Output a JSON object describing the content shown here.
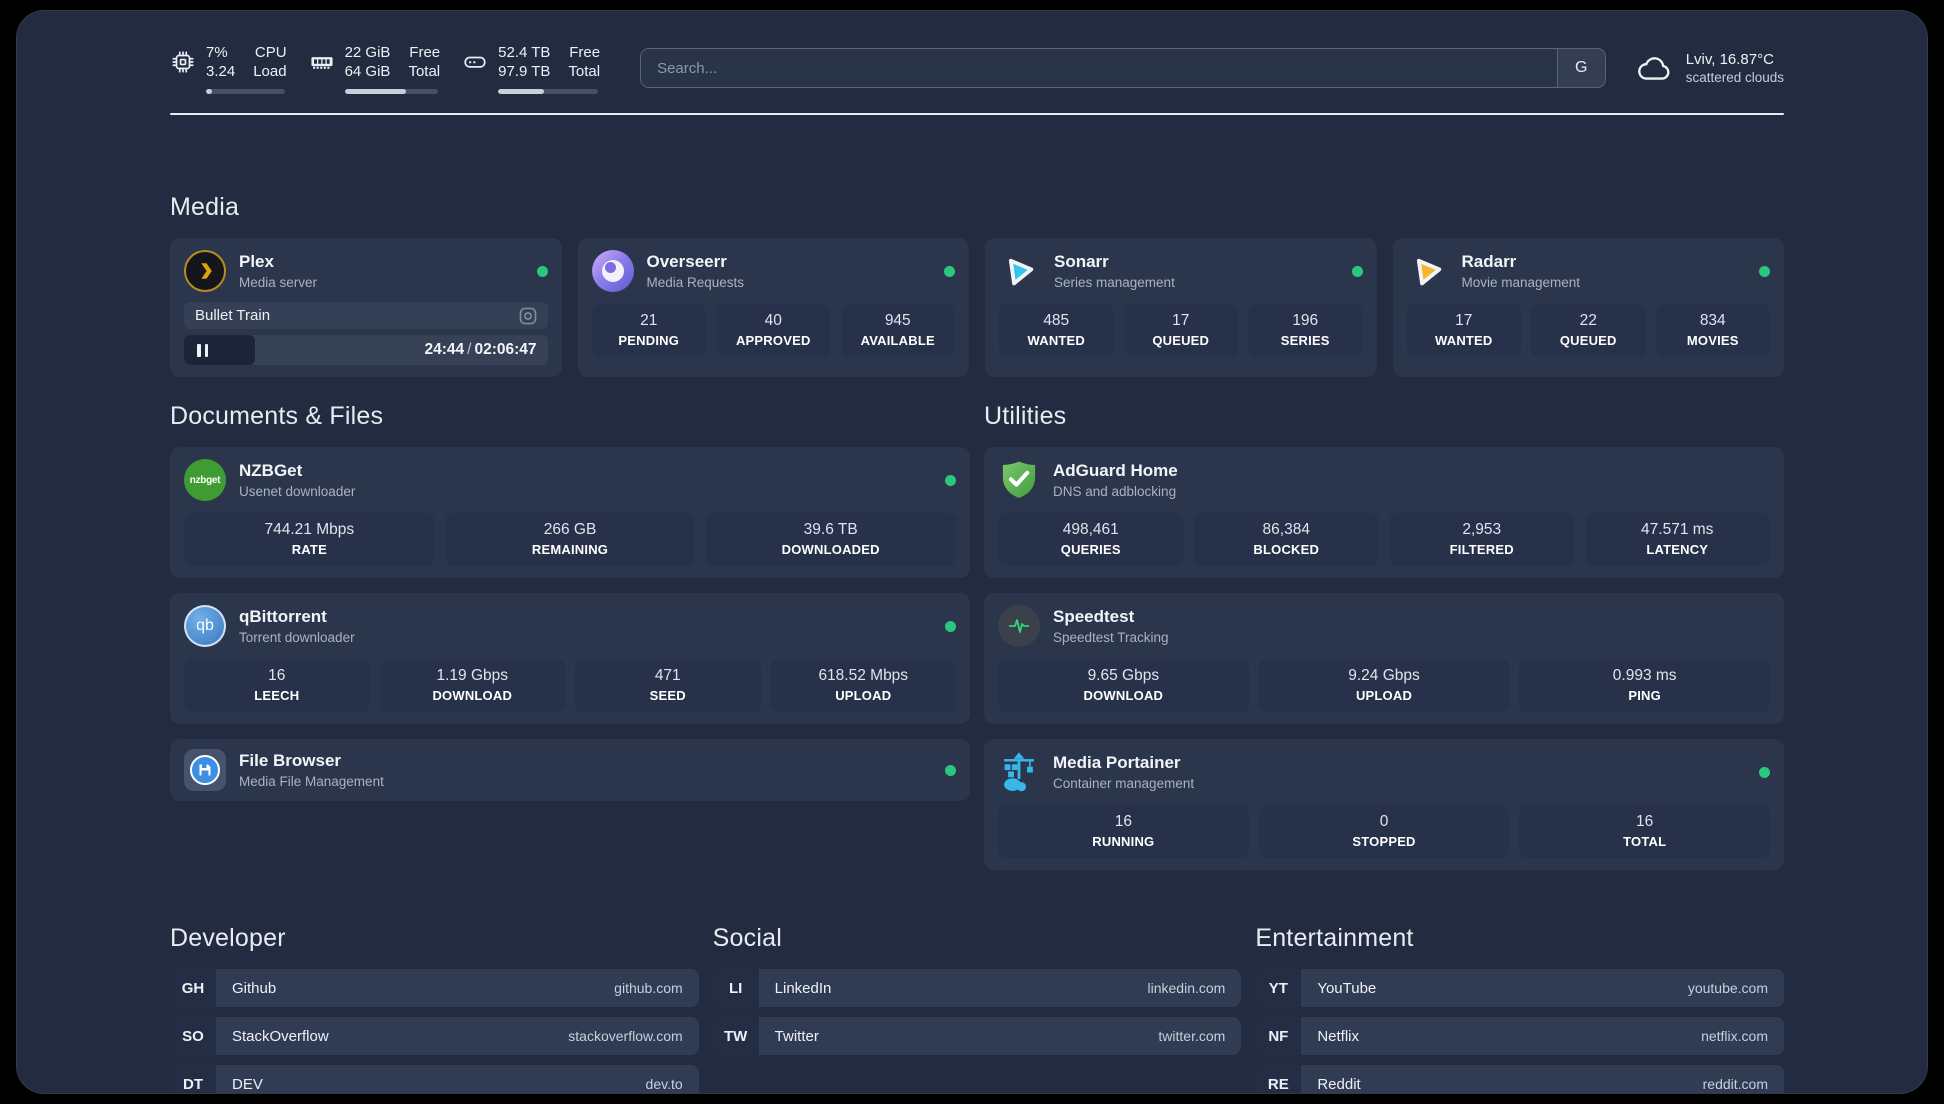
{
  "colors": {
    "accent_green": "#2bc77f",
    "page_bg": "#222b40",
    "card_bg": "#2b364d"
  },
  "header": {
    "stats": [
      {
        "icon": "cpu-icon",
        "value_top": "7%",
        "value_bottom": "3.24",
        "label_top": "CPU",
        "label_bottom": "Load",
        "percent": 7
      },
      {
        "icon": "memory-icon",
        "value_top": "22 GiB",
        "value_bottom": "64 GiB",
        "label_top": "Free",
        "label_bottom": "Total",
        "percent": 66
      },
      {
        "icon": "disk-icon",
        "value_top": "52.4 TB",
        "value_bottom": "97.9 TB",
        "label_top": "Free",
        "label_bottom": "Total",
        "percent": 46
      }
    ],
    "search": {
      "placeholder": "Search...",
      "engine_label": "G"
    },
    "weather": {
      "line1": "Lviv, 16.87°C",
      "line2": "scattered clouds"
    }
  },
  "media": {
    "title": "Media",
    "plex": {
      "title": "Plex",
      "subtitle": "Media server",
      "online": true,
      "now_playing": {
        "track": "Bullet Train",
        "elapsed": "24:44",
        "separator": "/",
        "total": "02:06:47",
        "percent": 19.5
      }
    },
    "overseerr": {
      "title": "Overseerr",
      "subtitle": "Media Requests",
      "online": true,
      "stats": [
        {
          "value": "21",
          "label": "PENDING"
        },
        {
          "value": "40",
          "label": "APPROVED"
        },
        {
          "value": "945",
          "label": "AVAILABLE"
        }
      ]
    },
    "sonarr": {
      "title": "Sonarr",
      "subtitle": "Series management",
      "online": true,
      "stats": [
        {
          "value": "485",
          "label": "WANTED"
        },
        {
          "value": "17",
          "label": "QUEUED"
        },
        {
          "value": "196",
          "label": "SERIES"
        }
      ]
    },
    "radarr": {
      "title": "Radarr",
      "subtitle": "Movie management",
      "online": true,
      "stats": [
        {
          "value": "17",
          "label": "WANTED"
        },
        {
          "value": "22",
          "label": "QUEUED"
        },
        {
          "value": "834",
          "label": "MOVIES"
        }
      ]
    }
  },
  "documents": {
    "title": "Documents & Files",
    "nzbget": {
      "title": "NZBGet",
      "subtitle": "Usenet downloader",
      "online": true,
      "stats": [
        {
          "value": "744.21 Mbps",
          "label": "RATE"
        },
        {
          "value": "266 GB",
          "label": "REMAINING"
        },
        {
          "value": "39.6 TB",
          "label": "DOWNLOADED"
        }
      ]
    },
    "qbittorrent": {
      "title": "qBittorrent",
      "subtitle": "Torrent downloader",
      "online": true,
      "stats": [
        {
          "value": "16",
          "label": "LEECH"
        },
        {
          "value": "1.19 Gbps",
          "label": "DOWNLOAD"
        },
        {
          "value": "471",
          "label": "SEED"
        },
        {
          "value": "618.52 Mbps",
          "label": "UPLOAD"
        }
      ]
    },
    "filebrowser": {
      "title": "File Browser",
      "subtitle": "Media File Management",
      "online": true
    }
  },
  "utilities": {
    "title": "Utilities",
    "adguard": {
      "title": "AdGuard Home",
      "subtitle": "DNS and adblocking",
      "stats": [
        {
          "value": "498,461",
          "label": "QUERIES"
        },
        {
          "value": "86,384",
          "label": "BLOCKED"
        },
        {
          "value": "2,953",
          "label": "FILTERED"
        },
        {
          "value": "47.571 ms",
          "label": "LATENCY"
        }
      ]
    },
    "speedtest": {
      "title": "Speedtest",
      "subtitle": "Speedtest Tracking",
      "stats": [
        {
          "value": "9.65 Gbps",
          "label": "DOWNLOAD"
        },
        {
          "value": "9.24 Gbps",
          "label": "UPLOAD"
        },
        {
          "value": "0.993 ms",
          "label": "PING"
        }
      ]
    },
    "portainer": {
      "title": "Media Portainer",
      "subtitle": "Container management",
      "online": true,
      "stats": [
        {
          "value": "16",
          "label": "RUNNING"
        },
        {
          "value": "0",
          "label": "STOPPED"
        },
        {
          "value": "16",
          "label": "TOTAL"
        }
      ]
    }
  },
  "bookmarks": [
    {
      "title": "Developer",
      "links": [
        {
          "abbr": "GH",
          "name": "Github",
          "url": "github.com"
        },
        {
          "abbr": "SO",
          "name": "StackOverflow",
          "url": "stackoverflow.com"
        },
        {
          "abbr": "DT",
          "name": "DEV",
          "url": "dev.to"
        }
      ]
    },
    {
      "title": "Social",
      "links": [
        {
          "abbr": "LI",
          "name": "LinkedIn",
          "url": "linkedin.com"
        },
        {
          "abbr": "TW",
          "name": "Twitter",
          "url": "twitter.com"
        }
      ]
    },
    {
      "title": "Entertainment",
      "links": [
        {
          "abbr": "YT",
          "name": "YouTube",
          "url": "youtube.com"
        },
        {
          "abbr": "NF",
          "name": "Netflix",
          "url": "netflix.com"
        },
        {
          "abbr": "RE",
          "name": "Reddit",
          "url": "reddit.com"
        }
      ]
    }
  ]
}
